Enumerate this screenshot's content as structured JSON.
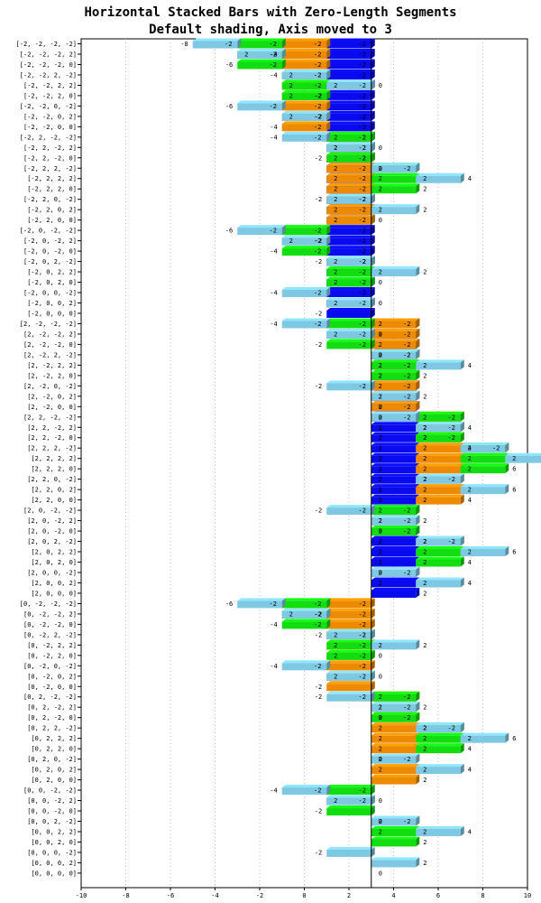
{
  "chart_data": {
    "type": "bar",
    "orientation": "horizontal",
    "stacked": true,
    "title": "Horizontal Stacked Bars with Zero-Length Segments",
    "subtitle": "Default shading, Axis moved to 3",
    "xlim": [
      -10,
      10
    ],
    "xticks": [
      -10,
      -8,
      -6,
      -4,
      -2,
      0,
      2,
      4,
      6,
      8,
      10
    ],
    "axis_at": 3,
    "grid": "vertical dotted",
    "categories": [
      "[-2, -2, -2, -2]",
      "[-2, -2, -2, 2]",
      "[-2, -2, -2, 0]",
      "[-2, -2, 2, -2]",
      "[-2, -2, 2, 2]",
      "[-2, -2, 2, 0]",
      "[-2, -2, 0, -2]",
      "[-2, -2, 0, 2]",
      "[-2, -2, 0, 0]",
      "[-2, 2, -2, -2]",
      "[-2, 2, -2, 2]",
      "[-2, 2, -2, 0]",
      "[-2, 2, 2, -2]",
      "[-2, 2, 2, 2]",
      "[-2, 2, 2, 0]",
      "[-2, 2, 0, -2]",
      "[-2, 2, 0, 2]",
      "[-2, 2, 0, 0]",
      "[-2, 0, -2, -2]",
      "[-2, 0, -2, 2]",
      "[-2, 0, -2, 0]",
      "[-2, 0, 2, -2]",
      "[-2, 0, 2, 2]",
      "[-2, 0, 2, 0]",
      "[-2, 0, 0, -2]",
      "[-2, 0, 0, 2]",
      "[-2, 0, 0, 0]",
      "[2, -2, -2, -2]",
      "[2, -2, -2, 2]",
      "[2, -2, -2, 0]",
      "[2, -2, 2, -2]",
      "[2, -2, 2, 2]",
      "[2, -2, 2, 0]",
      "[2, -2, 0, -2]",
      "[2, -2, 0, 2]",
      "[2, -2, 0, 0]",
      "[2, 2, -2, -2]",
      "[2, 2, -2, 2]",
      "[2, 2, -2, 0]",
      "[2, 2, 2, -2]",
      "[2, 2, 2, 2]",
      "[2, 2, 2, 0]",
      "[2, 2, 0, -2]",
      "[2, 2, 0, 2]",
      "[2, 2, 0, 0]",
      "[2, 0, -2, -2]",
      "[2, 0, -2, 2]",
      "[2, 0, -2, 0]",
      "[2, 0, 2, -2]",
      "[2, 0, 2, 2]",
      "[2, 0, 2, 0]",
      "[2, 0, 0, -2]",
      "[2, 0, 0, 2]",
      "[2, 0, 0, 0]",
      "[0, -2, -2, -2]",
      "[0, -2, -2, 2]",
      "[0, -2, -2, 0]",
      "[0, -2, 2, -2]",
      "[0, -2, 2, 2]",
      "[0, -2, 2, 0]",
      "[0, -2, 0, -2]",
      "[0, -2, 0, 2]",
      "[0, -2, 0, 0]",
      "[0, 2, -2, -2]",
      "[0, 2, -2, 2]",
      "[0, 2, -2, 0]",
      "[0, 2, 2, -2]",
      "[0, 2, 2, 2]",
      "[0, 2, 2, 0]",
      "[0, 2, 0, -2]",
      "[0, 2, 0, 2]",
      "[0, 2, 0, 0]",
      "[0, 0, -2, -2]",
      "[0, 0, -2, 2]",
      "[0, 0, -2, 0]",
      "[0, 0, 2, -2]",
      "[0, 0, 2, 2]",
      "[0, 0, 2, 0]",
      "[0, 0, 0, -2]",
      "[0, 0, 0, 2]",
      "[0, 0, 0, 0]"
    ],
    "series": [
      {
        "color": "#0a0aee",
        "values": [
          -2,
          -2,
          -2,
          -2,
          -2,
          -2,
          -2,
          -2,
          -2,
          -2,
          -2,
          -2,
          -2,
          -2,
          -2,
          -2,
          -2,
          -2,
          -2,
          -2,
          -2,
          -2,
          -2,
          -2,
          -2,
          -2,
          -2,
          2,
          2,
          2,
          2,
          2,
          2,
          2,
          2,
          2,
          2,
          2,
          2,
          2,
          2,
          2,
          2,
          2,
          2,
          2,
          2,
          2,
          2,
          2,
          2,
          2,
          2,
          2,
          0,
          0,
          0,
          0,
          0,
          0,
          0,
          0,
          0,
          0,
          0,
          0,
          0,
          0,
          0,
          0,
          0,
          0,
          0,
          0,
          0,
          0,
          0,
          0,
          0,
          0,
          0
        ]
      },
      {
        "color": "#ee8a00",
        "values": [
          -2,
          -2,
          -2,
          -2,
          -2,
          -2,
          -2,
          -2,
          -2,
          2,
          2,
          2,
          2,
          2,
          2,
          2,
          2,
          2,
          0,
          0,
          0,
          0,
          0,
          0,
          0,
          0,
          0,
          -2,
          -2,
          -2,
          -2,
          -2,
          -2,
          -2,
          -2,
          -2,
          2,
          2,
          2,
          2,
          2,
          2,
          2,
          2,
          2,
          0,
          0,
          0,
          0,
          0,
          0,
          0,
          0,
          0,
          -2,
          -2,
          -2,
          -2,
          -2,
          -2,
          -2,
          -2,
          -2,
          2,
          2,
          2,
          2,
          2,
          2,
          2,
          2,
          2,
          0,
          0,
          0,
          0,
          0,
          0,
          0,
          0,
          0
        ]
      },
      {
        "color": "#11dd11",
        "values": [
          -2,
          -2,
          -2,
          2,
          2,
          2,
          0,
          0,
          0,
          -2,
          -2,
          -2,
          2,
          2,
          2,
          0,
          0,
          0,
          -2,
          -2,
          -2,
          2,
          2,
          2,
          0,
          0,
          0,
          -2,
          -2,
          -2,
          2,
          2,
          2,
          0,
          0,
          0,
          -2,
          -2,
          -2,
          2,
          2,
          2,
          0,
          0,
          0,
          -2,
          -2,
          -2,
          2,
          2,
          2,
          0,
          0,
          0,
          -2,
          -2,
          -2,
          2,
          2,
          2,
          0,
          0,
          0,
          -2,
          -2,
          -2,
          2,
          2,
          2,
          0,
          0,
          0,
          -2,
          -2,
          -2,
          2,
          2,
          2,
          0,
          0,
          0
        ]
      },
      {
        "color": "#7ec8e3",
        "values": [
          -2,
          2,
          0,
          -2,
          2,
          0,
          -2,
          2,
          0,
          -2,
          2,
          0,
          -2,
          2,
          0,
          -2,
          2,
          0,
          -2,
          2,
          0,
          -2,
          2,
          0,
          -2,
          2,
          0,
          -2,
          2,
          0,
          -2,
          2,
          0,
          -2,
          2,
          0,
          -2,
          2,
          0,
          -2,
          2,
          0,
          -2,
          2,
          0,
          -2,
          2,
          0,
          -2,
          2,
          0,
          -2,
          2,
          0,
          -2,
          2,
          0,
          -2,
          2,
          0,
          -2,
          2,
          0,
          -2,
          2,
          0,
          -2,
          2,
          0,
          -2,
          2,
          0,
          -2,
          2,
          0,
          -2,
          2,
          0,
          -2,
          2,
          0
        ]
      }
    ]
  }
}
